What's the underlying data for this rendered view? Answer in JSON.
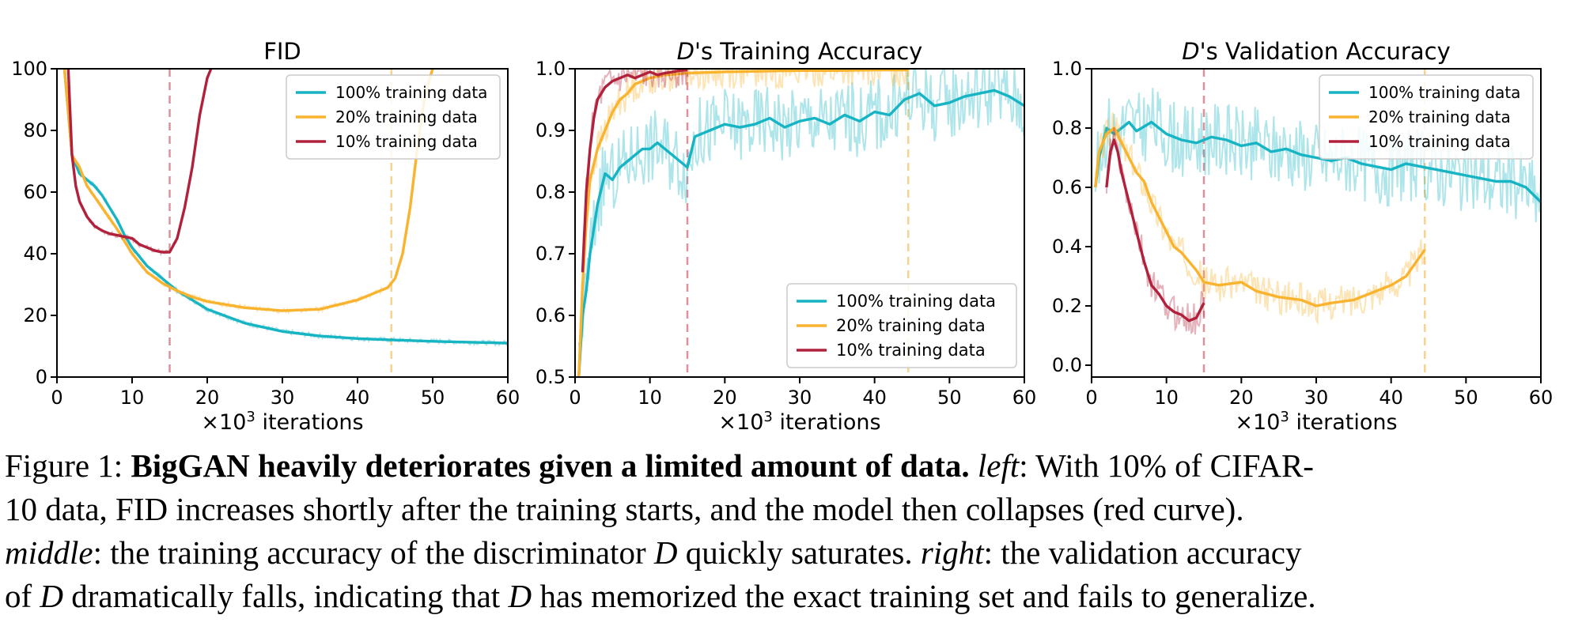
{
  "chart_data": [
    {
      "type": "line",
      "title": "FID",
      "title_prefix": "",
      "xlabel_prefix": "×10",
      "xlabel_exp": "3",
      "xlabel_suffix": " iterations",
      "ylabel": "",
      "xlim": [
        0,
        60
      ],
      "ylim": [
        0,
        100
      ],
      "xticks": [
        0,
        10,
        20,
        30,
        40,
        50,
        60
      ],
      "yticks": [
        0,
        20,
        40,
        60,
        80,
        100
      ],
      "ytick_labels": [
        "0",
        "20",
        "40",
        "60",
        "80",
        "100"
      ],
      "legend_position": "top-right",
      "vlines": [
        {
          "x": 15,
          "color": "#e0909a"
        },
        {
          "x": 44.5,
          "color": "#f7d290"
        }
      ],
      "series": [
        {
          "name": "100% training data",
          "color": "#17b4c4",
          "x": [
            1,
            2,
            3,
            4,
            5,
            6,
            7,
            8,
            9,
            10,
            12,
            14,
            16,
            18,
            20,
            25,
            30,
            35,
            40,
            45,
            50,
            55,
            60
          ],
          "y": [
            100,
            72,
            66,
            64,
            62,
            59,
            55,
            51,
            46,
            42,
            36,
            32,
            28,
            25,
            22,
            17.5,
            14.8,
            13.3,
            12.5,
            12,
            11.6,
            11.3,
            11
          ]
        },
        {
          "name": "20% training data",
          "color": "#f9b32f",
          "x": [
            1,
            2,
            3,
            4,
            6,
            8,
            10,
            12,
            14,
            16,
            18,
            20,
            25,
            30,
            35,
            40,
            42,
            44,
            45,
            46,
            47,
            48,
            49,
            50
          ],
          "y": [
            100,
            72,
            68,
            62,
            55,
            48,
            40,
            34,
            30.5,
            28,
            26,
            24.5,
            22.5,
            21.5,
            22,
            25,
            27,
            29,
            32,
            40,
            55,
            75,
            92,
            100
          ]
        },
        {
          "name": "10% training data",
          "color": "#b1213c",
          "x": [
            1.5,
            2,
            2.5,
            3,
            4,
            5,
            6,
            7,
            8,
            9,
            10,
            11,
            12,
            13,
            14,
            15,
            16,
            17,
            18,
            19,
            20,
            20.5
          ],
          "y": [
            100,
            72,
            62,
            57,
            52,
            49,
            47.5,
            46.5,
            46,
            45.5,
            45,
            43,
            42,
            41,
            40.5,
            40.5,
            45,
            55,
            68,
            85,
            97,
            100
          ]
        }
      ]
    },
    {
      "type": "line",
      "title": "'s Training Accuracy",
      "title_prefix": "D",
      "xlabel_prefix": "×10",
      "xlabel_exp": "3",
      "xlabel_suffix": " iterations",
      "ylabel": "",
      "xlim": [
        0,
        60
      ],
      "ylim": [
        0.5,
        1.0
      ],
      "xticks": [
        0,
        10,
        20,
        30,
        40,
        50,
        60
      ],
      "yticks": [
        0.5,
        0.6,
        0.7,
        0.8,
        0.9,
        1.0
      ],
      "ytick_labels": [
        "0.5",
        "0.6",
        "0.7",
        "0.8",
        "0.9",
        "1.0"
      ],
      "legend_position": "bottom-right",
      "vlines": [
        {
          "x": 15,
          "color": "#e0909a"
        },
        {
          "x": 44.5,
          "color": "#f7d290"
        }
      ],
      "series": [
        {
          "name": "100% training data",
          "color": "#17b4c4",
          "x": [
            0.5,
            1,
            1.5,
            2,
            3,
            4,
            5,
            6,
            7,
            8,
            9,
            10,
            11,
            12,
            13,
            14,
            15,
            16,
            18,
            20,
            22,
            24,
            26,
            28,
            30,
            32,
            34,
            36,
            38,
            40,
            42,
            44,
            46,
            48,
            50,
            52,
            54,
            56,
            58,
            60
          ],
          "y": [
            0.5,
            0.6,
            0.64,
            0.7,
            0.78,
            0.83,
            0.82,
            0.84,
            0.85,
            0.86,
            0.87,
            0.87,
            0.88,
            0.87,
            0.86,
            0.85,
            0.84,
            0.89,
            0.9,
            0.91,
            0.905,
            0.91,
            0.92,
            0.905,
            0.915,
            0.92,
            0.91,
            0.925,
            0.915,
            0.93,
            0.925,
            0.95,
            0.96,
            0.94,
            0.945,
            0.955,
            0.96,
            0.965,
            0.955,
            0.94
          ]
        },
        {
          "name": "20% training data",
          "color": "#f9b32f",
          "x": [
            0.5,
            1,
            1.5,
            2,
            3,
            4,
            5,
            6,
            7,
            8,
            10,
            12,
            15,
            20,
            25,
            30,
            35,
            40,
            44.5
          ],
          "y": [
            0.5,
            0.65,
            0.75,
            0.82,
            0.87,
            0.9,
            0.93,
            0.95,
            0.96,
            0.975,
            0.985,
            0.99,
            0.993,
            0.995,
            0.996,
            0.997,
            0.997,
            0.998,
            0.998
          ]
        },
        {
          "name": "10% training data",
          "color": "#b1213c",
          "x": [
            1,
            1.5,
            2,
            2.5,
            3,
            4,
            5,
            6,
            7,
            8,
            9,
            10,
            11,
            12,
            13,
            14,
            15
          ],
          "y": [
            0.67,
            0.8,
            0.87,
            0.92,
            0.95,
            0.97,
            0.98,
            0.985,
            0.99,
            0.985,
            0.99,
            0.995,
            0.99,
            0.993,
            0.995,
            0.997,
            0.998
          ]
        }
      ]
    },
    {
      "type": "line",
      "title": "'s Validation Accuracy",
      "title_prefix": "D",
      "xlabel_prefix": "×10",
      "xlabel_exp": "3",
      "xlabel_suffix": " iterations",
      "ylabel": "",
      "xlim": [
        0,
        60
      ],
      "ylim": [
        -0.04,
        1.0
      ],
      "xticks": [
        0,
        10,
        20,
        30,
        40,
        50,
        60
      ],
      "yticks": [
        0.0,
        0.2,
        0.4,
        0.6,
        0.8,
        1.0
      ],
      "ytick_labels": [
        "0.0",
        "0.2",
        "0.4",
        "0.6",
        "0.8",
        "1.0"
      ],
      "legend_position": "top-right",
      "vlines": [
        {
          "x": 15,
          "color": "#e0909a"
        },
        {
          "x": 44.5,
          "color": "#f7d290"
        }
      ],
      "series": [
        {
          "name": "100% training data",
          "color": "#17b4c4",
          "x": [
            0.5,
            1,
            2,
            3,
            4,
            5,
            6,
            8,
            10,
            12,
            14,
            16,
            18,
            20,
            22,
            24,
            26,
            28,
            30,
            32,
            34,
            36,
            38,
            40,
            42,
            44,
            46,
            48,
            50,
            52,
            54,
            56,
            58,
            60
          ],
          "y": [
            0.6,
            0.7,
            0.8,
            0.78,
            0.8,
            0.82,
            0.79,
            0.82,
            0.78,
            0.76,
            0.75,
            0.77,
            0.76,
            0.74,
            0.75,
            0.72,
            0.73,
            0.71,
            0.7,
            0.69,
            0.7,
            0.68,
            0.67,
            0.66,
            0.68,
            0.67,
            0.66,
            0.65,
            0.64,
            0.63,
            0.62,
            0.62,
            0.6,
            0.55
          ]
        },
        {
          "name": "20% training data",
          "color": "#f9b32f",
          "x": [
            0.5,
            1,
            2,
            3,
            4,
            5,
            6,
            7,
            8,
            9,
            10,
            11,
            12,
            13,
            14,
            15,
            17,
            20,
            22,
            25,
            28,
            30,
            32,
            35,
            37,
            40,
            42,
            44.5
          ],
          "y": [
            0.6,
            0.72,
            0.78,
            0.8,
            0.75,
            0.7,
            0.65,
            0.62,
            0.55,
            0.5,
            0.45,
            0.4,
            0.38,
            0.35,
            0.32,
            0.28,
            0.27,
            0.28,
            0.25,
            0.23,
            0.22,
            0.2,
            0.21,
            0.22,
            0.24,
            0.27,
            0.3,
            0.39
          ]
        },
        {
          "name": "10% training data",
          "color": "#b1213c",
          "x": [
            2,
            2.5,
            3,
            3.5,
            4,
            5,
            6,
            7,
            8,
            9,
            10,
            11,
            12,
            13,
            14,
            15
          ],
          "y": [
            0.6,
            0.72,
            0.76,
            0.72,
            0.65,
            0.55,
            0.45,
            0.35,
            0.27,
            0.24,
            0.2,
            0.18,
            0.17,
            0.15,
            0.16,
            0.21
          ]
        }
      ]
    }
  ],
  "caption": {
    "label": "Figure 1: ",
    "bold": "BigGAN heavily deteriorates given a limited amount of data.",
    "left_word": "left",
    "line1_rest": ": With 10% of CIFAR-",
    "line2": "10 data, FID increases shortly after the training starts, and the model then collapses (red curve).",
    "middle_word": "middle",
    "line3_a": ": the training accuracy of the discriminator ",
    "line3_D": "D",
    "line3_b": " quickly saturates. ",
    "right_word": "right",
    "line3_c": ": the validation accuracy",
    "line4_a": "of ",
    "line4_D1": "D",
    "line4_b": " dramatically falls, indicating that ",
    "line4_D2": "D",
    "line4_c": " has memorized the exact training set and fails to generalize."
  }
}
